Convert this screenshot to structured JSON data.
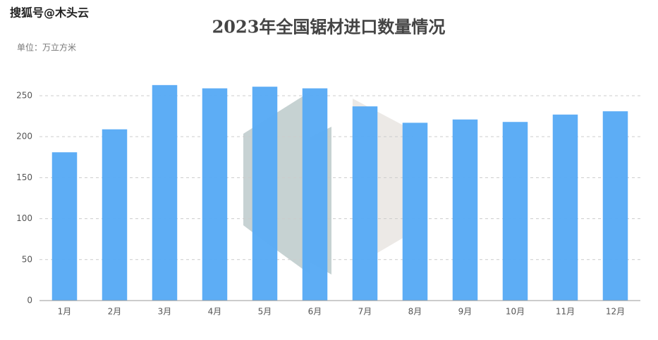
{
  "chart_data": {
    "type": "bar",
    "title": "2023年全国锯材进口数量情况",
    "subtitle": "单位：万立方米",
    "watermark": "搜狐号@木头云",
    "categories": [
      "1月",
      "2月",
      "3月",
      "4月",
      "5月",
      "6月",
      "7月",
      "8月",
      "9月",
      "10月",
      "11月",
      "12月"
    ],
    "values": [
      181,
      209,
      263,
      259,
      261,
      259,
      237,
      217,
      221,
      218,
      227,
      231
    ],
    "color": "#5aabf5",
    "ylim": [
      0,
      270
    ],
    "yticks": [
      0,
      50,
      100,
      150,
      200,
      250
    ],
    "grid": true
  }
}
